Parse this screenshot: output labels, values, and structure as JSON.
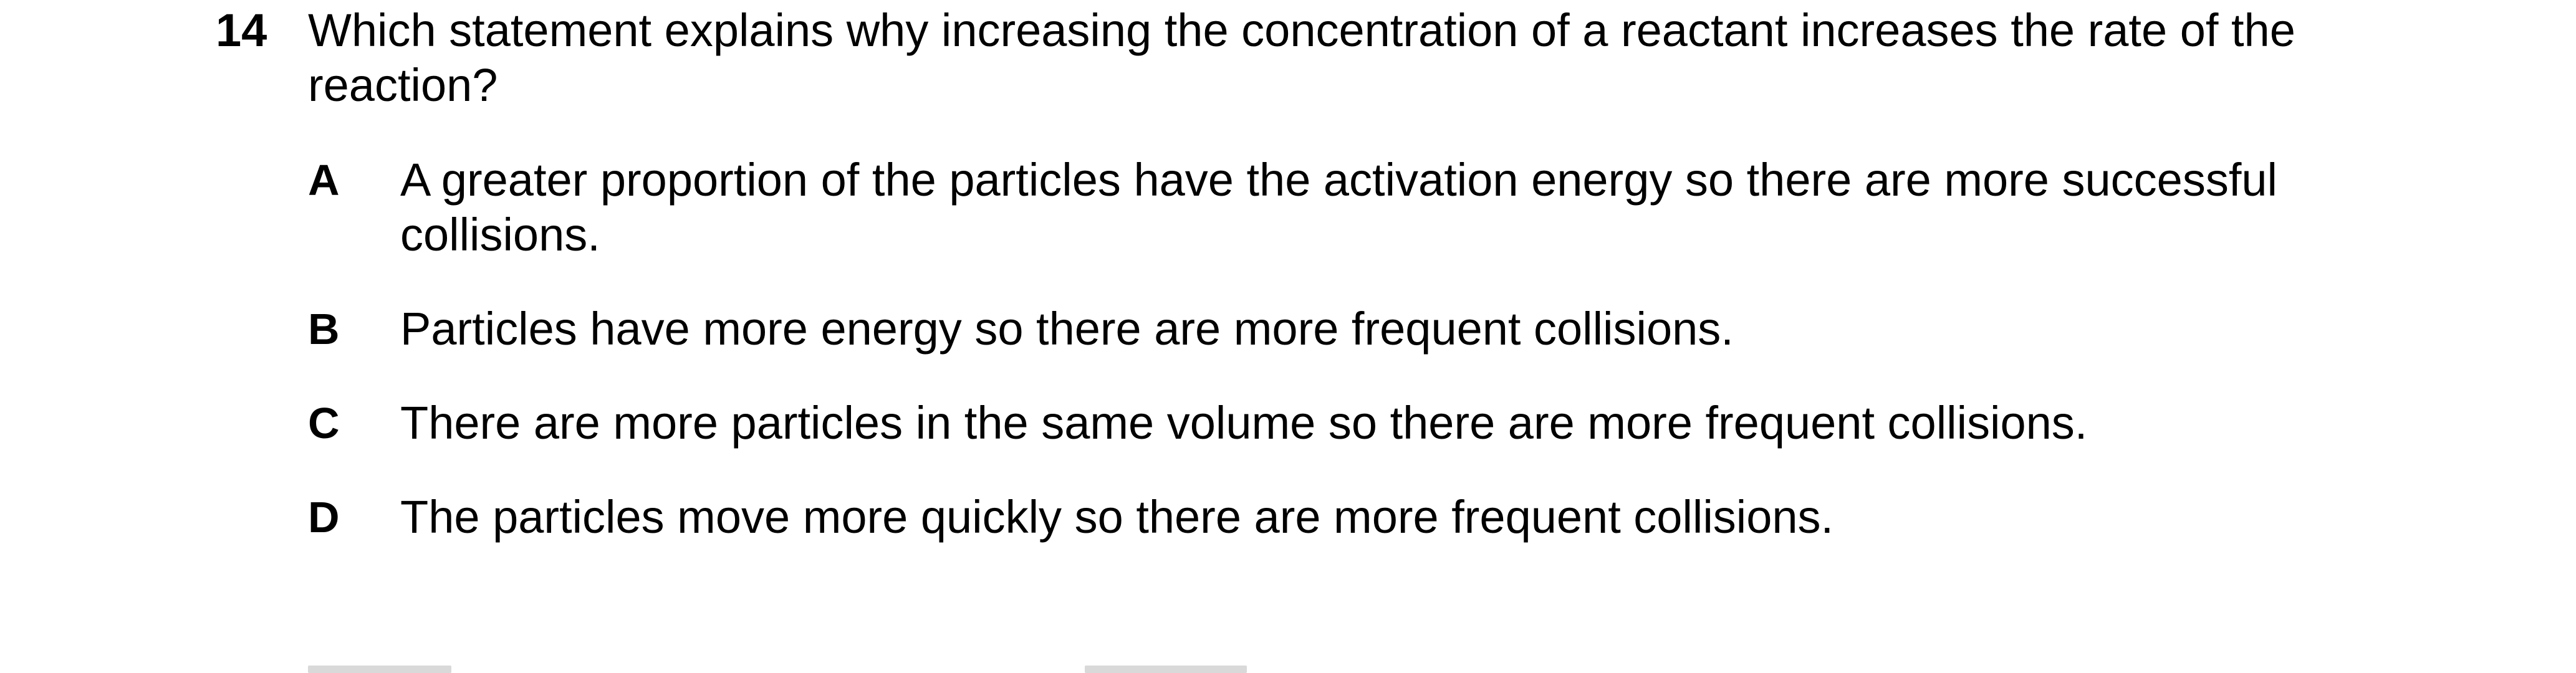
{
  "question": {
    "number": "14",
    "text": "Which statement explains why increasing the concentration of a reactant increases the rate of the reaction?",
    "options": [
      {
        "letter": "A",
        "text": "A greater proportion of the particles have the activation energy so there are more successful collisions."
      },
      {
        "letter": "B",
        "text": "Particles have more energy so there are more frequent collisions."
      },
      {
        "letter": "C",
        "text": "There are more particles in the same volume so there are more frequent collisions."
      },
      {
        "letter": "D",
        "text": "The particles move more quickly so there are more frequent collisions."
      }
    ]
  }
}
